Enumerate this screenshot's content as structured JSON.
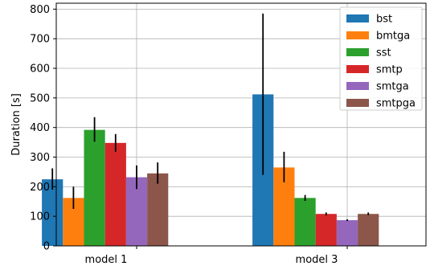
{
  "chart_data": {
    "type": "bar",
    "categories": [
      "model 1",
      "model 3"
    ],
    "ylabel": "Duration [s]",
    "xlabel": "",
    "ylim": [
      0,
      820
    ],
    "yticks": [
      0,
      100,
      200,
      300,
      400,
      500,
      600,
      700,
      800
    ],
    "grid": true,
    "legend_position": "top-right",
    "series": [
      {
        "name": "bst",
        "color": "#1f77b4",
        "values": [
          225,
          512
        ],
        "err_low": [
          190,
          240
        ],
        "err_high": [
          262,
          785
        ]
      },
      {
        "name": "bmtga",
        "color": "#ff7f0e",
        "values": [
          162,
          265
        ],
        "err_low": [
          125,
          215
        ],
        "err_high": [
          200,
          318
        ]
      },
      {
        "name": "sst",
        "color": "#2ca02c",
        "values": [
          392,
          162
        ],
        "err_low": [
          352,
          152
        ],
        "err_high": [
          435,
          172
        ]
      },
      {
        "name": "smtp",
        "color": "#d62728",
        "values": [
          348,
          108
        ],
        "err_low": [
          318,
          103
        ],
        "err_high": [
          378,
          113
        ]
      },
      {
        "name": "smtga",
        "color": "#9467bd",
        "values": [
          232,
          87
        ],
        "err_low": [
          192,
          84
        ],
        "err_high": [
          272,
          90
        ]
      },
      {
        "name": "smtpga",
        "color": "#8c564b",
        "values": [
          245,
          108
        ],
        "err_low": [
          210,
          104
        ],
        "err_high": [
          282,
          113
        ]
      }
    ]
  }
}
